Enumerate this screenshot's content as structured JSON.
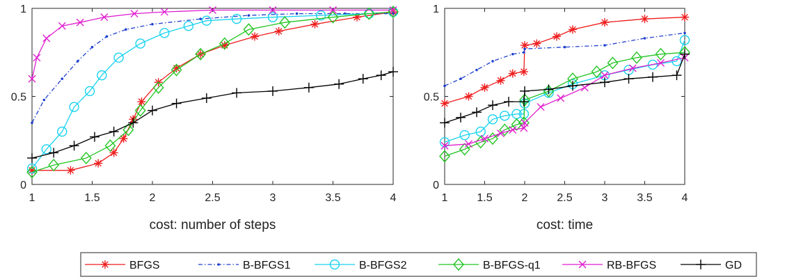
{
  "chart_data": [
    {
      "type": "line",
      "xlabel": "cost: number of steps",
      "ylabel": "",
      "xlim": [
        1,
        4
      ],
      "ylim": [
        0,
        1
      ],
      "xticks": [
        "1",
        "1.5",
        "2",
        "2.5",
        "3",
        "3.5",
        "4"
      ],
      "yticks": [
        "0",
        "0.5",
        "1"
      ],
      "series": [
        {
          "name": "BFGS",
          "points": [
            [
              1,
              0.08
            ],
            [
              1.32,
              0.08
            ],
            [
              1.55,
              0.12
            ],
            [
              1.68,
              0.18
            ],
            [
              1.76,
              0.26
            ],
            [
              1.84,
              0.37
            ],
            [
              1.91,
              0.47
            ],
            [
              2.05,
              0.58
            ],
            [
              2.2,
              0.66
            ],
            [
              2.4,
              0.74
            ],
            [
              2.6,
              0.79
            ],
            [
              2.85,
              0.84
            ],
            [
              3.05,
              0.87
            ],
            [
              3.35,
              0.91
            ],
            [
              3.7,
              0.95
            ],
            [
              4,
              0.98
            ]
          ]
        },
        {
          "name": "B-BFGS1",
          "points": [
            [
              1,
              0.35
            ],
            [
              1.1,
              0.48
            ],
            [
              1.25,
              0.6
            ],
            [
              1.38,
              0.7
            ],
            [
              1.5,
              0.78
            ],
            [
              1.62,
              0.84
            ],
            [
              1.78,
              0.88
            ],
            [
              2.0,
              0.91
            ],
            [
              2.4,
              0.94
            ],
            [
              2.8,
              0.96
            ],
            [
              3.2,
              0.97
            ],
            [
              3.6,
              0.97
            ],
            [
              4,
              0.97
            ]
          ]
        },
        {
          "name": "B-BFGS2",
          "points": [
            [
              1,
              0.09
            ],
            [
              1.12,
              0.2
            ],
            [
              1.25,
              0.3
            ],
            [
              1.35,
              0.44
            ],
            [
              1.48,
              0.53
            ],
            [
              1.58,
              0.62
            ],
            [
              1.72,
              0.72
            ],
            [
              1.9,
              0.8
            ],
            [
              2.1,
              0.86
            ],
            [
              2.3,
              0.9
            ],
            [
              2.45,
              0.93
            ],
            [
              2.7,
              0.94
            ],
            [
              3.0,
              0.95
            ],
            [
              3.4,
              0.96
            ],
            [
              3.8,
              0.97
            ],
            [
              4,
              0.98
            ]
          ]
        },
        {
          "name": "B-BFGS-q1",
          "points": [
            [
              1,
              0.07
            ],
            [
              1.18,
              0.11
            ],
            [
              1.45,
              0.15
            ],
            [
              1.65,
              0.22
            ],
            [
              1.8,
              0.31
            ],
            [
              1.9,
              0.42
            ],
            [
              2.05,
              0.55
            ],
            [
              2.2,
              0.65
            ],
            [
              2.4,
              0.74
            ],
            [
              2.6,
              0.8
            ],
            [
              2.8,
              0.88
            ],
            [
              3.1,
              0.92
            ],
            [
              3.5,
              0.95
            ],
            [
              3.8,
              0.97
            ],
            [
              4,
              0.98
            ]
          ]
        },
        {
          "name": "RB-BFGS",
          "points": [
            [
              1,
              0.6
            ],
            [
              1.04,
              0.72
            ],
            [
              1.12,
              0.83
            ],
            [
              1.25,
              0.9
            ],
            [
              1.4,
              0.92
            ],
            [
              1.6,
              0.95
            ],
            [
              1.85,
              0.97
            ],
            [
              2.1,
              0.98
            ],
            [
              2.5,
              0.99
            ],
            [
              3.0,
              0.99
            ],
            [
              3.5,
              0.99
            ],
            [
              4,
              0.99
            ]
          ]
        },
        {
          "name": "GD",
          "points": [
            [
              1,
              0.15
            ],
            [
              1.18,
              0.18
            ],
            [
              1.35,
              0.22
            ],
            [
              1.52,
              0.27
            ],
            [
              1.68,
              0.3
            ],
            [
              1.84,
              0.35
            ],
            [
              2.0,
              0.42
            ],
            [
              2.2,
              0.46
            ],
            [
              2.45,
              0.49
            ],
            [
              2.7,
              0.52
            ],
            [
              3.0,
              0.53
            ],
            [
              3.3,
              0.55
            ],
            [
              3.55,
              0.57
            ],
            [
              3.75,
              0.6
            ],
            [
              3.9,
              0.62
            ],
            [
              4,
              0.64
            ]
          ]
        }
      ]
    },
    {
      "type": "line",
      "xlabel": "cost: time",
      "ylabel": "",
      "xlim": [
        1,
        4
      ],
      "ylim": [
        0,
        1
      ],
      "xticks": [
        "1",
        "1.5",
        "2",
        "2.5",
        "3",
        "3.5",
        "4"
      ],
      "yticks": [
        "0",
        "0.5",
        "1"
      ],
      "series": [
        {
          "name": "BFGS",
          "points": [
            [
              1,
              0.46
            ],
            [
              1.3,
              0.5
            ],
            [
              1.5,
              0.55
            ],
            [
              1.7,
              0.59
            ],
            [
              1.85,
              0.63
            ],
            [
              1.99,
              0.64
            ],
            [
              2.0,
              0.79
            ],
            [
              2.15,
              0.8
            ],
            [
              2.4,
              0.84
            ],
            [
              2.6,
              0.88
            ],
            [
              3.0,
              0.92
            ],
            [
              3.5,
              0.94
            ],
            [
              4,
              0.95
            ]
          ]
        },
        {
          "name": "B-BFGS1",
          "points": [
            [
              1,
              0.56
            ],
            [
              1.2,
              0.6
            ],
            [
              1.4,
              0.65
            ],
            [
              1.6,
              0.7
            ],
            [
              1.85,
              0.74
            ],
            [
              1.99,
              0.75
            ],
            [
              2.0,
              0.77
            ],
            [
              2.5,
              0.78
            ],
            [
              3.0,
              0.79
            ],
            [
              3.5,
              0.83
            ],
            [
              4,
              0.86
            ]
          ]
        },
        {
          "name": "B-BFGS2",
          "points": [
            [
              1,
              0.24
            ],
            [
              1.25,
              0.28
            ],
            [
              1.45,
              0.3
            ],
            [
              1.6,
              0.37
            ],
            [
              1.75,
              0.39
            ],
            [
              1.9,
              0.4
            ],
            [
              1.99,
              0.4
            ],
            [
              2.0,
              0.46
            ],
            [
              2.3,
              0.52
            ],
            [
              2.6,
              0.57
            ],
            [
              3.0,
              0.62
            ],
            [
              3.3,
              0.65
            ],
            [
              3.6,
              0.68
            ],
            [
              3.9,
              0.7
            ],
            [
              4,
              0.82
            ]
          ]
        },
        {
          "name": "B-BFGS-q1",
          "points": [
            [
              1,
              0.16
            ],
            [
              1.25,
              0.2
            ],
            [
              1.45,
              0.24
            ],
            [
              1.6,
              0.26
            ],
            [
              1.75,
              0.31
            ],
            [
              1.9,
              0.34
            ],
            [
              1.99,
              0.35
            ],
            [
              2.0,
              0.48
            ],
            [
              2.3,
              0.53
            ],
            [
              2.6,
              0.6
            ],
            [
              2.9,
              0.64
            ],
            [
              3.1,
              0.69
            ],
            [
              3.4,
              0.72
            ],
            [
              3.7,
              0.74
            ],
            [
              4,
              0.75
            ]
          ]
        },
        {
          "name": "RB-BFGS",
          "points": [
            [
              1,
              0.22
            ],
            [
              1.3,
              0.23
            ],
            [
              1.5,
              0.26
            ],
            [
              1.7,
              0.29
            ],
            [
              1.85,
              0.31
            ],
            [
              1.99,
              0.32
            ],
            [
              2.0,
              0.35
            ],
            [
              2.2,
              0.44
            ],
            [
              2.45,
              0.49
            ],
            [
              2.75,
              0.55
            ],
            [
              3.0,
              0.62
            ],
            [
              3.35,
              0.66
            ],
            [
              3.7,
              0.69
            ],
            [
              4,
              0.72
            ]
          ]
        },
        {
          "name": "GD",
          "points": [
            [
              1,
              0.35
            ],
            [
              1.2,
              0.38
            ],
            [
              1.4,
              0.41
            ],
            [
              1.6,
              0.45
            ],
            [
              1.8,
              0.47
            ],
            [
              1.99,
              0.47
            ],
            [
              2.0,
              0.53
            ],
            [
              2.3,
              0.54
            ],
            [
              2.6,
              0.56
            ],
            [
              3.0,
              0.58
            ],
            [
              3.3,
              0.6
            ],
            [
              3.6,
              0.61
            ],
            [
              3.9,
              0.62
            ],
            [
              4,
              0.74
            ]
          ]
        }
      ]
    }
  ],
  "legend": {
    "entries": [
      {
        "name": "BFGS",
        "color": "#ee1c1c",
        "dash": "",
        "marker": "asterisk"
      },
      {
        "name": "B-BFGS1",
        "color": "#1f3fcf",
        "dash": "6,3,1.5,3",
        "marker": "point"
      },
      {
        "name": "B-BFGS2",
        "color": "#18d2f0",
        "dash": "",
        "marker": "circle"
      },
      {
        "name": "B-BFGS-q1",
        "color": "#22c422",
        "dash": "",
        "marker": "diamond"
      },
      {
        "name": "RB-BFGS",
        "color": "#e01ed0",
        "dash": "",
        "marker": "x"
      },
      {
        "name": "GD",
        "color": "#000000",
        "dash": "",
        "marker": "plus"
      }
    ]
  }
}
